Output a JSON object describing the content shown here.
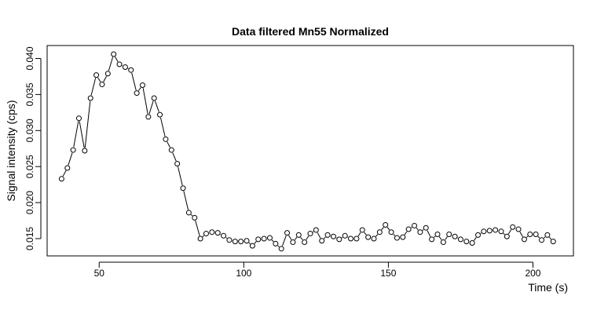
{
  "chart_data": {
    "type": "line",
    "title": "Data filtered Mn55 Normalized",
    "xlabel": "Time (s)",
    "ylabel": "Signal intensity (cps)",
    "xlim": [
      32,
      214
    ],
    "ylim": [
      0.0126,
      0.0418
    ],
    "xticks": [
      50,
      100,
      150,
      200
    ],
    "yticks": [
      0.015,
      0.02,
      0.025,
      0.03,
      0.035,
      0.04
    ],
    "ytick_labels": [
      "0.015",
      "0.020",
      "0.025",
      "0.030",
      "0.035",
      "0.040"
    ],
    "xtick_labels": [
      "50",
      "100",
      "150",
      "200"
    ],
    "grid": false,
    "marker": "open-circle",
    "line_style": "segments-between-points",
    "colors": {
      "line": "#000000",
      "marker_stroke": "#000000",
      "marker_fill": "#ffffff",
      "axes": "#000000"
    },
    "series": [
      {
        "x": [
          37.0,
          39.0,
          41.0,
          43.0,
          45.0,
          47.0,
          49.0,
          51.0,
          53.0,
          55.0,
          57.0,
          59.0,
          61.0,
          63.0,
          65.0,
          67.0,
          69.0,
          71.0,
          73.0,
          75.0,
          77.0,
          79.0,
          81.0,
          83.0,
          85.0,
          87.0,
          89.0,
          91.0,
          93.0,
          95.0,
          97.0,
          99.0,
          101.0,
          103.0,
          105.0,
          107.0,
          109.0,
          111.0,
          113.0,
          115.0,
          117.0,
          119.0,
          121.0,
          123.0,
          125.0,
          127.0,
          129.0,
          131.0,
          133.0,
          135.0,
          137.0,
          139.0,
          141.0,
          143.0,
          145.0,
          147.0,
          149.0,
          151.0,
          153.0,
          155.0,
          157.0,
          159.0,
          161.0,
          163.0,
          165.0,
          167.0,
          169.0,
          171.0,
          173.0,
          175.0,
          177.0,
          179.0,
          181.0,
          183.0,
          185.0,
          187.0,
          189.0,
          191.0,
          193.0,
          195.0,
          197.0,
          199.0,
          201.0,
          203.0,
          205.0,
          207.0
        ],
        "y": [
          0.0233,
          0.0248,
          0.0273,
          0.0317,
          0.0272,
          0.0345,
          0.0377,
          0.0364,
          0.0379,
          0.0406,
          0.0392,
          0.0388,
          0.0384,
          0.0352,
          0.0363,
          0.0319,
          0.0345,
          0.0322,
          0.0288,
          0.0273,
          0.0254,
          0.022,
          0.0186,
          0.0179,
          0.015,
          0.0157,
          0.0159,
          0.0158,
          0.0154,
          0.0148,
          0.0146,
          0.0146,
          0.0147,
          0.014,
          0.0149,
          0.015,
          0.0151,
          0.0143,
          0.0136,
          0.0158,
          0.0145,
          0.0155,
          0.0145,
          0.0157,
          0.0162,
          0.0147,
          0.0155,
          0.0153,
          0.0149,
          0.0154,
          0.015,
          0.015,
          0.0162,
          0.0152,
          0.015,
          0.0159,
          0.0169,
          0.0159,
          0.0151,
          0.0152,
          0.0163,
          0.0168,
          0.0159,
          0.0165,
          0.0149,
          0.0156,
          0.0145,
          0.0156,
          0.0153,
          0.0149,
          0.0146,
          0.0144,
          0.0155,
          0.016,
          0.0161,
          0.0162,
          0.016,
          0.0153,
          0.0166,
          0.0163,
          0.0149,
          0.0156,
          0.0156,
          0.0148,
          0.0155,
          0.0146
        ]
      }
    ]
  }
}
